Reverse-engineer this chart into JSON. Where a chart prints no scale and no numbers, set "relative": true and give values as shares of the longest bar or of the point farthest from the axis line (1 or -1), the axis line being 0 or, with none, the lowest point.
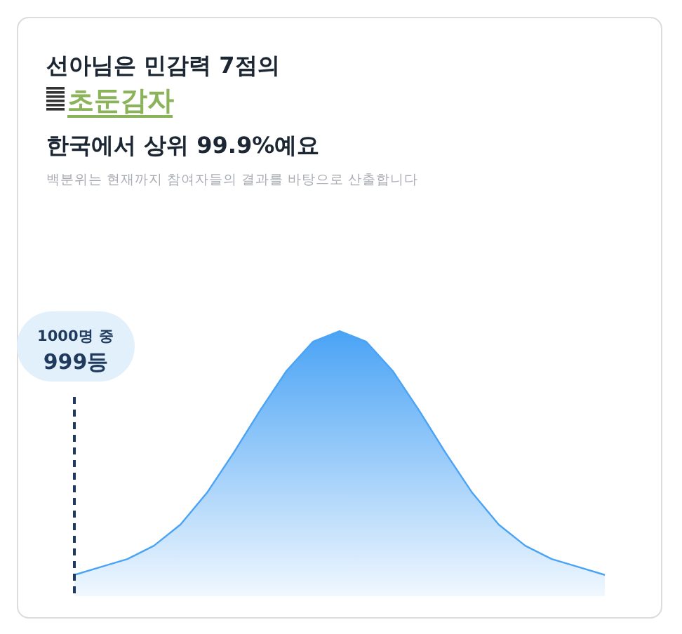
{
  "chart_data": {
    "type": "area",
    "relative": true,
    "title": "선아님은 민감력 7점의\n초둔감자\n한국에서 상위 99.9%예요",
    "subtitle": "백분위는 현재까지 참여자들의 결과를 바탕으로 산출합니다",
    "categories": [
      null,
      null,
      null,
      null,
      null,
      null,
      null,
      null,
      null,
      null,
      null,
      null,
      null,
      null,
      null,
      null,
      null,
      null,
      null,
      null,
      null
    ],
    "series": [
      {
        "color": "#4aa3f5",
        "values": [
          0.08,
          0.11,
          0.14,
          0.19,
          0.27,
          0.39,
          0.54,
          0.7,
          0.85,
          0.96,
          1,
          0.96,
          0.85,
          0.7,
          0.54,
          0.39,
          0.27,
          0.19,
          0.14,
          0.11,
          0.08
        ]
      }
    ],
    "annotations": [
      "1000명 중\n999등"
    ]
  }
}
